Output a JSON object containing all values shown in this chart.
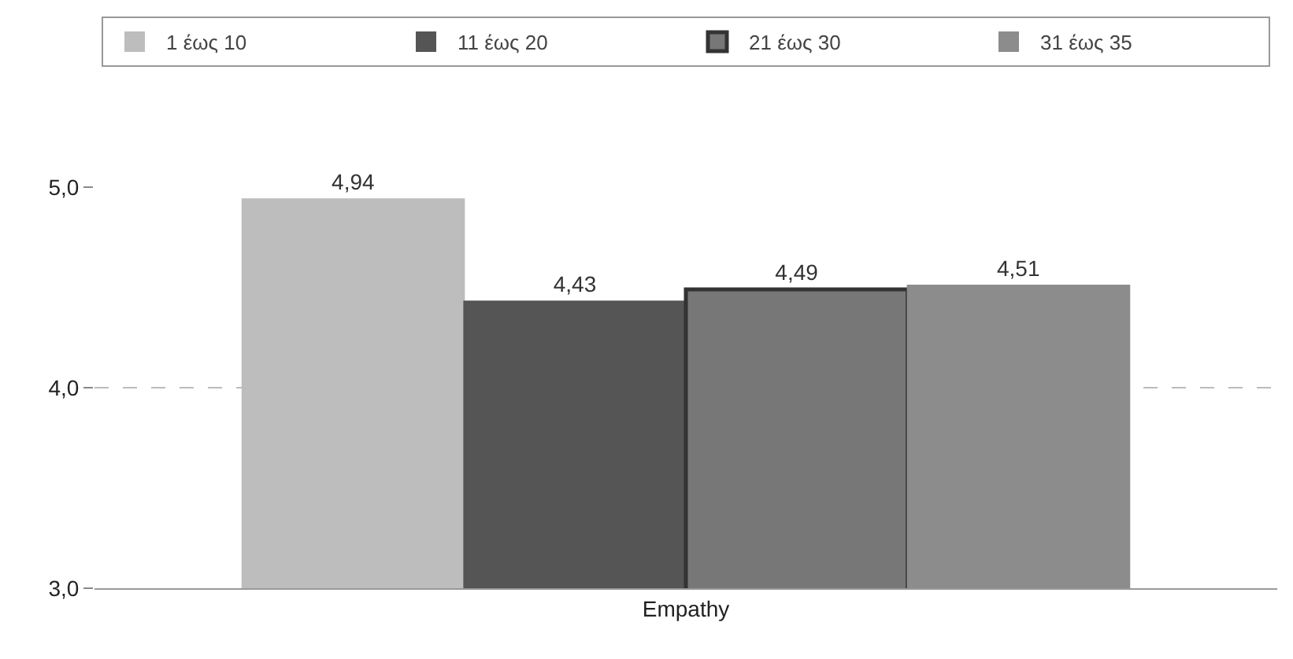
{
  "chart_data": {
    "type": "bar",
    "categories": [
      "Empathy"
    ],
    "series": [
      {
        "name": "1 έως 10",
        "color": "#bdbdbd",
        "values": [
          4.94
        ],
        "value_labels": [
          "4,94"
        ]
      },
      {
        "name": "11 έως 20",
        "color": "#555555",
        "values": [
          4.43
        ],
        "value_labels": [
          "4,43"
        ]
      },
      {
        "name": "21 έως 30",
        "color": "#777777",
        "values": [
          4.49
        ],
        "value_labels": [
          "4,49"
        ]
      },
      {
        "name": "31 έως 35",
        "color": "#8c8c8c",
        "values": [
          4.51
        ],
        "value_labels": [
          "4,51"
        ]
      }
    ],
    "ylim": [
      3,
      5
    ],
    "yticks": [
      {
        "value": 3,
        "label": "3,0"
      },
      {
        "value": 4,
        "label": "4,0"
      },
      {
        "value": 5,
        "label": "5,0"
      }
    ],
    "grid": "y",
    "legend": "top"
  }
}
